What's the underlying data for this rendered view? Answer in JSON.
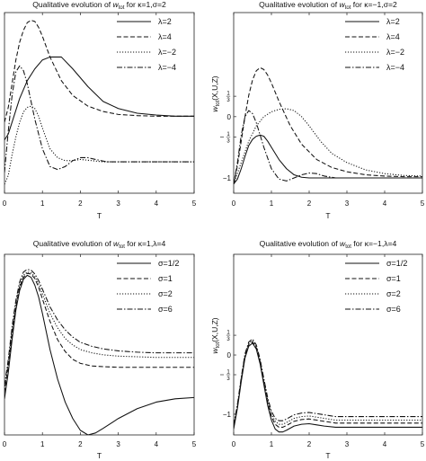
{
  "chart_data": [
    {
      "type": "line",
      "title": "Qualitative evolution of w_tot for κ=1,σ=2",
      "title_main": "Qualitative evolution of ",
      "title_var": "w",
      "title_sub": "tot",
      "title_tail": " for κ=1,σ=2",
      "xlabel": "T",
      "ylabel": "",
      "xlim": [
        0,
        5
      ],
      "ylim": [
        -1.25,
        1.8
      ],
      "x_ticks": [
        0,
        1,
        2,
        3,
        4,
        5
      ],
      "y_ticks": [],
      "legend_position": "top-right",
      "series": [
        {
          "name": "λ=2",
          "style": "solid",
          "x": [
            0,
            0.1,
            0.2,
            0.4,
            0.6,
            0.8,
            1.0,
            1.2,
            1.5,
            1.8,
            2.2,
            2.6,
            3.0,
            3.5,
            4.0,
            4.5,
            5.0
          ],
          "y": [
            -0.35,
            -0.25,
            -0.05,
            0.35,
            0.65,
            0.85,
            1.0,
            1.05,
            1.05,
            0.85,
            0.55,
            0.3,
            0.18,
            0.1,
            0.07,
            0.05,
            0.05
          ]
        },
        {
          "name": "λ=4",
          "style": "dashed",
          "x": [
            0,
            0.1,
            0.2,
            0.3,
            0.4,
            0.5,
            0.6,
            0.7,
            0.8,
            0.9,
            1.0,
            1.2,
            1.5,
            1.8,
            2.2,
            2.6,
            3.0,
            3.5,
            4.0,
            4.5,
            5.0
          ],
          "y": [
            -0.05,
            0.2,
            0.6,
            1.0,
            1.3,
            1.5,
            1.63,
            1.67,
            1.65,
            1.55,
            1.4,
            1.05,
            0.65,
            0.4,
            0.22,
            0.13,
            0.08,
            0.06,
            0.05,
            0.05,
            0.05
          ]
        },
        {
          "name": "λ=−2",
          "style": "dotted",
          "x": [
            0,
            0.1,
            0.2,
            0.3,
            0.4,
            0.5,
            0.6,
            0.7,
            0.8,
            0.9,
            1.0,
            1.2,
            1.4,
            1.6,
            1.8,
            2.0,
            2.3,
            2.6,
            3.0,
            3.5,
            4.0,
            4.5,
            5.0
          ],
          "y": [
            -1.1,
            -0.95,
            -0.6,
            -0.3,
            -0.05,
            0.12,
            0.2,
            0.22,
            0.18,
            0.05,
            -0.15,
            -0.5,
            -0.65,
            -0.7,
            -0.7,
            -0.68,
            -0.7,
            -0.72,
            -0.72,
            -0.72,
            -0.72,
            -0.72,
            -0.72
          ]
        },
        {
          "name": "λ=−4",
          "style": "dashdot",
          "x": [
            0,
            0.1,
            0.2,
            0.3,
            0.4,
            0.5,
            0.6,
            0.7,
            0.8,
            1.0,
            1.2,
            1.4,
            1.6,
            1.8,
            2.0,
            2.2,
            2.4,
            2.7,
            3.0,
            3.5,
            4.0,
            5.0
          ],
          "y": [
            -0.9,
            -0.2,
            0.4,
            0.8,
            0.9,
            0.82,
            0.6,
            0.3,
            0.0,
            -0.5,
            -0.8,
            -0.85,
            -0.8,
            -0.7,
            -0.65,
            -0.65,
            -0.68,
            -0.72,
            -0.72,
            -0.72,
            -0.72,
            -0.72
          ]
        }
      ]
    },
    {
      "type": "line",
      "title": "Qualitative evolution of w_tot for κ=−1,σ=2",
      "title_main": "Qualitative evolution of ",
      "title_var": "w",
      "title_sub": "tot",
      "title_tail": " for κ=−1,σ=2",
      "xlabel": "T",
      "ylabel": "w_tot(X,U,Z)",
      "ylabel_var": "w",
      "ylabel_sub": "tot",
      "ylabel_tail": "(X,U,Z)",
      "xlim": [
        0,
        5
      ],
      "ylim": [
        -1.25,
        1.7
      ],
      "x_ticks": [
        0,
        1,
        2,
        3,
        4,
        5
      ],
      "y_ticks": [
        {
          "value": 0.3333,
          "num": "1",
          "den": "3",
          "neg": false
        },
        {
          "value": 0,
          "label": "0"
        },
        {
          "value": -0.3333,
          "num": "1",
          "den": "3",
          "neg": true
        },
        {
          "value": -1,
          "label": "−1"
        }
      ],
      "legend_position": "top-right",
      "series": [
        {
          "name": "λ=2",
          "style": "solid",
          "x": [
            0,
            0.1,
            0.2,
            0.3,
            0.4,
            0.5,
            0.6,
            0.7,
            0.8,
            0.9,
            1.0,
            1.2,
            1.4,
            1.6,
            1.8,
            2.0,
            2.5,
            3.0,
            3.5,
            4.0,
            4.5,
            5.0
          ],
          "y": [
            -1.1,
            -1.02,
            -0.85,
            -0.65,
            -0.47,
            -0.37,
            -0.32,
            -0.3,
            -0.32,
            -0.4,
            -0.5,
            -0.7,
            -0.85,
            -0.95,
            -0.99,
            -1.0,
            -1.0,
            -1.0,
            -1.0,
            -1.0,
            -1.0,
            -1.0
          ]
        },
        {
          "name": "λ=4",
          "style": "dashed",
          "x": [
            0,
            0.1,
            0.2,
            0.3,
            0.4,
            0.5,
            0.6,
            0.7,
            0.8,
            0.9,
            1.0,
            1.2,
            1.5,
            1.8,
            2.2,
            2.6,
            3.0,
            3.5,
            4.0,
            4.5,
            5.0
          ],
          "y": [
            -1.1,
            -0.8,
            -0.4,
            0.0,
            0.35,
            0.6,
            0.75,
            0.8,
            0.77,
            0.68,
            0.55,
            0.25,
            -0.15,
            -0.45,
            -0.7,
            -0.83,
            -0.9,
            -0.95,
            -0.97,
            -0.98,
            -0.98
          ]
        },
        {
          "name": "λ=−2",
          "style": "dotted",
          "x": [
            0,
            0.2,
            0.4,
            0.6,
            0.8,
            1.0,
            1.2,
            1.4,
            1.6,
            1.8,
            2.0,
            2.3,
            2.6,
            3.0,
            3.5,
            4.0,
            4.5,
            5.0
          ],
          "y": [
            -1.1,
            -0.75,
            -0.4,
            -0.15,
            0.0,
            0.08,
            0.12,
            0.13,
            0.1,
            0.0,
            -0.15,
            -0.4,
            -0.6,
            -0.75,
            -0.87,
            -0.93,
            -0.96,
            -0.97
          ]
        },
        {
          "name": "λ=−4",
          "style": "dashdot",
          "x": [
            0,
            0.1,
            0.2,
            0.3,
            0.4,
            0.5,
            0.6,
            0.7,
            0.8,
            1.0,
            1.2,
            1.4,
            1.6,
            1.8,
            2.0,
            2.2,
            2.4,
            2.7,
            3.0,
            3.5,
            4.0,
            5.0
          ],
          "y": [
            -1.1,
            -0.75,
            -0.3,
            0.0,
            0.1,
            0.05,
            -0.1,
            -0.3,
            -0.5,
            -0.85,
            -1.02,
            -1.05,
            -1.0,
            -0.95,
            -0.92,
            -0.93,
            -0.97,
            -1.0,
            -1.0,
            -1.0,
            -1.0,
            -1.0
          ]
        }
      ]
    },
    {
      "type": "line",
      "title": "Qualitative evolution of w_tot for κ=1,λ=4",
      "title_main": "Qualitative evolution of ",
      "title_var": "w",
      "title_sub": "tot",
      "title_tail": " for κ=1,λ=4",
      "xlabel": "T",
      "ylabel": "",
      "xlim": [
        0,
        5
      ],
      "ylim": [
        -0.95,
        1.8
      ],
      "x_ticks": [
        0,
        1,
        2,
        3,
        4,
        5
      ],
      "y_ticks": [],
      "legend_position": "top-right",
      "series": [
        {
          "name": "σ=1/2",
          "style": "solid",
          "x": [
            0,
            0.1,
            0.2,
            0.3,
            0.4,
            0.5,
            0.6,
            0.7,
            0.8,
            0.9,
            1.0,
            1.2,
            1.4,
            1.6,
            1.8,
            2.0,
            2.2,
            2.4,
            2.6,
            3.0,
            3.5,
            4.0,
            4.5,
            5.0
          ],
          "y": [
            -0.4,
            0.0,
            0.5,
            0.95,
            1.25,
            1.42,
            1.48,
            1.45,
            1.33,
            1.15,
            0.9,
            0.35,
            -0.1,
            -0.45,
            -0.7,
            -0.88,
            -0.95,
            -0.92,
            -0.85,
            -0.7,
            -0.55,
            -0.45,
            -0.4,
            -0.38
          ]
        },
        {
          "name": "σ=1",
          "style": "dashed",
          "x": [
            0,
            0.1,
            0.2,
            0.3,
            0.4,
            0.5,
            0.6,
            0.7,
            0.8,
            0.9,
            1.0,
            1.2,
            1.4,
            1.6,
            1.8,
            2.0,
            2.3,
            2.6,
            3.0,
            3.5,
            4.0,
            4.5,
            5.0
          ],
          "y": [
            -0.3,
            0.1,
            0.6,
            1.0,
            1.3,
            1.45,
            1.51,
            1.5,
            1.43,
            1.3,
            1.12,
            0.78,
            0.5,
            0.32,
            0.2,
            0.14,
            0.1,
            0.09,
            0.08,
            0.08,
            0.08,
            0.08,
            0.08
          ]
        },
        {
          "name": "σ=2",
          "style": "dotted",
          "x": [
            0,
            0.1,
            0.2,
            0.3,
            0.4,
            0.5,
            0.6,
            0.7,
            0.8,
            0.9,
            1.0,
            1.2,
            1.4,
            1.6,
            1.8,
            2.0,
            2.3,
            2.6,
            3.0,
            3.5,
            4.0,
            4.5,
            5.0
          ],
          "y": [
            -0.25,
            0.15,
            0.65,
            1.05,
            1.33,
            1.48,
            1.53,
            1.52,
            1.46,
            1.35,
            1.2,
            0.9,
            0.68,
            0.52,
            0.42,
            0.35,
            0.3,
            0.27,
            0.25,
            0.24,
            0.23,
            0.23,
            0.23
          ]
        },
        {
          "name": "σ=6",
          "style": "dashdot",
          "x": [
            0,
            0.1,
            0.2,
            0.3,
            0.4,
            0.5,
            0.6,
            0.7,
            0.8,
            0.9,
            1.0,
            1.2,
            1.4,
            1.6,
            1.8,
            2.0,
            2.3,
            2.6,
            3.0,
            3.5,
            4.0,
            4.5,
            5.0
          ],
          "y": [
            -0.2,
            0.2,
            0.7,
            1.1,
            1.38,
            1.53,
            1.57,
            1.56,
            1.5,
            1.4,
            1.27,
            1.0,
            0.8,
            0.65,
            0.54,
            0.46,
            0.4,
            0.36,
            0.33,
            0.31,
            0.3,
            0.3,
            0.3
          ]
        }
      ]
    },
    {
      "type": "line",
      "title": "Qualitative evolution of w_tot for κ=−1,λ=4",
      "title_main": "Qualitative evolution of ",
      "title_var": "w",
      "title_sub": "tot",
      "title_tail": " for κ=−1,λ=4",
      "xlabel": "T",
      "ylabel": "w_tot(X,U,Z)",
      "ylabel_var": "w",
      "ylabel_sub": "tot",
      "ylabel_tail": "(X,U,Z)",
      "xlim": [
        0,
        5
      ],
      "ylim": [
        -1.35,
        1.7
      ],
      "x_ticks": [
        0,
        1,
        2,
        3,
        4,
        5
      ],
      "y_ticks": [
        {
          "value": 0.3333,
          "num": "1",
          "den": "3",
          "neg": false
        },
        {
          "value": 0,
          "label": "0"
        },
        {
          "value": -0.3333,
          "num": "1",
          "den": "3",
          "neg": true
        },
        {
          "value": -1,
          "label": "−1"
        }
      ],
      "legend_position": "top-right",
      "series": [
        {
          "name": "σ=1/2",
          "style": "solid",
          "x": [
            0,
            0.1,
            0.2,
            0.3,
            0.4,
            0.5,
            0.6,
            0.7,
            0.8,
            0.9,
            1.0,
            1.1,
            1.2,
            1.3,
            1.4,
            1.6,
            1.8,
            2.0,
            2.2,
            2.4,
            2.7,
            3.0,
            3.5,
            4.0,
            4.5,
            5.0
          ],
          "y": [
            -1.25,
            -0.9,
            -0.45,
            -0.05,
            0.15,
            0.2,
            0.1,
            -0.15,
            -0.5,
            -0.85,
            -1.1,
            -1.25,
            -1.3,
            -1.3,
            -1.27,
            -1.2,
            -1.17,
            -1.16,
            -1.18,
            -1.2,
            -1.22,
            -1.22,
            -1.22,
            -1.22,
            -1.22,
            -1.22
          ]
        },
        {
          "name": "σ=1",
          "style": "dashed",
          "x": [
            0,
            0.1,
            0.2,
            0.3,
            0.4,
            0.5,
            0.6,
            0.7,
            0.8,
            0.9,
            1.0,
            1.1,
            1.2,
            1.3,
            1.4,
            1.6,
            1.8,
            2.0,
            2.2,
            2.4,
            2.7,
            3.0,
            3.5,
            4.0,
            4.5,
            5.0
          ],
          "y": [
            -1.22,
            -0.87,
            -0.42,
            -0.02,
            0.18,
            0.22,
            0.12,
            -0.12,
            -0.46,
            -0.8,
            -1.04,
            -1.17,
            -1.22,
            -1.22,
            -1.19,
            -1.12,
            -1.09,
            -1.08,
            -1.1,
            -1.12,
            -1.15,
            -1.15,
            -1.15,
            -1.15,
            -1.15,
            -1.15
          ]
        },
        {
          "name": "σ=2",
          "style": "dotted",
          "x": [
            0,
            0.1,
            0.2,
            0.3,
            0.4,
            0.5,
            0.6,
            0.7,
            0.8,
            0.9,
            1.0,
            1.1,
            1.2,
            1.3,
            1.4,
            1.6,
            1.8,
            2.0,
            2.2,
            2.4,
            2.7,
            3.0,
            3.5,
            4.0,
            4.5,
            5.0
          ],
          "y": [
            -1.2,
            -0.85,
            -0.4,
            0.0,
            0.2,
            0.24,
            0.14,
            -0.1,
            -0.43,
            -0.76,
            -1.0,
            -1.12,
            -1.17,
            -1.17,
            -1.14,
            -1.07,
            -1.04,
            -1.03,
            -1.05,
            -1.07,
            -1.1,
            -1.1,
            -1.1,
            -1.1,
            -1.1,
            -1.1
          ]
        },
        {
          "name": "σ=6",
          "style": "dashdot",
          "x": [
            0,
            0.1,
            0.2,
            0.3,
            0.4,
            0.5,
            0.6,
            0.7,
            0.8,
            0.9,
            1.0,
            1.1,
            1.2,
            1.3,
            1.4,
            1.6,
            1.8,
            2.0,
            2.2,
            2.4,
            2.7,
            3.0,
            3.5,
            4.0,
            4.5,
            5.0
          ],
          "y": [
            -1.18,
            -0.83,
            -0.38,
            0.02,
            0.22,
            0.27,
            0.17,
            -0.07,
            -0.4,
            -0.72,
            -0.95,
            -1.07,
            -1.11,
            -1.11,
            -1.08,
            -1.01,
            -0.98,
            -0.97,
            -0.99,
            -1.01,
            -1.04,
            -1.04,
            -1.04,
            -1.04,
            -1.04,
            -1.04
          ]
        }
      ]
    }
  ]
}
